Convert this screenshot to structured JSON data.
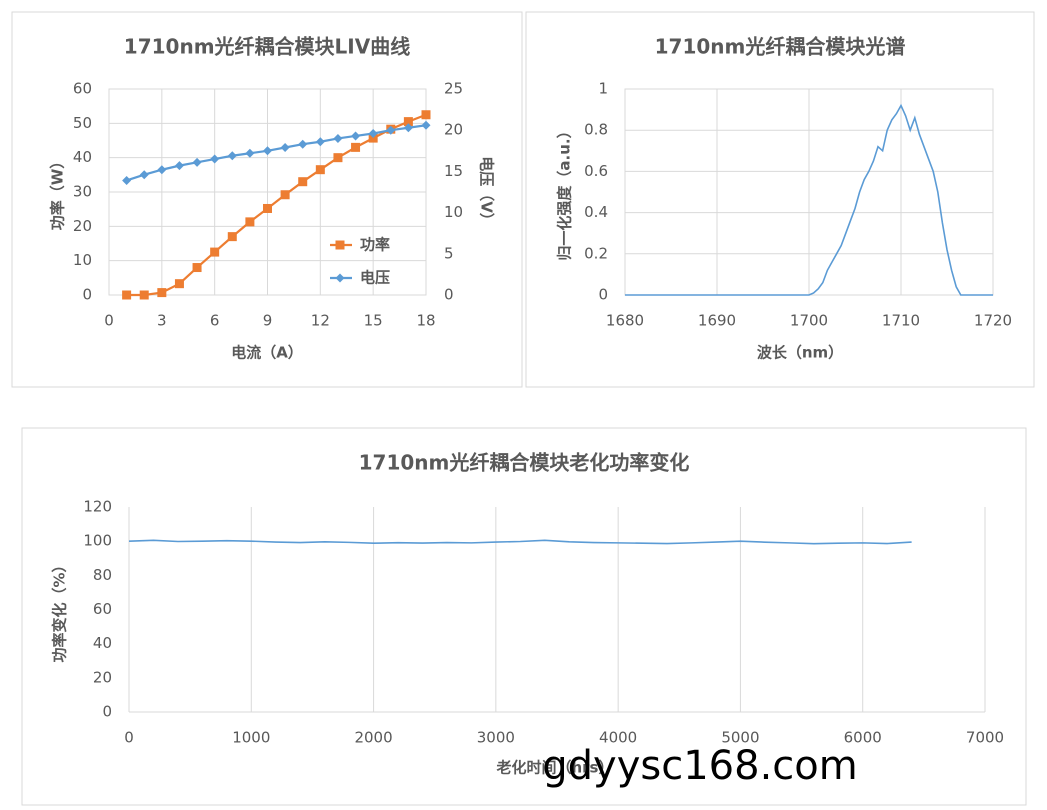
{
  "chart_data": [
    {
      "type": "line",
      "title": "1710nm光纤耦合模块LIV曲线",
      "x_label": "电流（A）",
      "y_label": "功率（W）",
      "y2_label": "电压（V）",
      "x": [
        1,
        2,
        3,
        4,
        5,
        6,
        7,
        8,
        9,
        10,
        11,
        12,
        13,
        14,
        15,
        16,
        17,
        18
      ],
      "series": [
        {
          "name": "功率",
          "color": "#ed7d31",
          "marker": "square",
          "values": [
            0,
            0,
            0.7,
            3.3,
            8,
            12.5,
            17,
            21.3,
            25.2,
            29.2,
            33,
            36.5,
            40,
            43,
            45.7,
            48.3,
            50.5,
            52.5
          ]
        },
        {
          "name": "电压",
          "color": "#5b9bd5",
          "marker": "diamond",
          "axis": "y2",
          "values": [
            13.9,
            14.6,
            15.2,
            15.7,
            16.1,
            16.5,
            16.9,
            17.2,
            17.5,
            17.9,
            18.3,
            18.6,
            19.0,
            19.3,
            19.6,
            20.0,
            20.3,
            20.6
          ]
        }
      ],
      "xlim": [
        0,
        18
      ],
      "xticks": [
        0,
        3,
        6,
        9,
        12,
        15,
        18
      ],
      "ylim": [
        0,
        60
      ],
      "yticks": [
        0,
        10,
        20,
        30,
        40,
        50,
        60
      ],
      "y2lim": [
        0,
        25
      ],
      "y2ticks": [
        0,
        5,
        10,
        15,
        20,
        25
      ],
      "grid": "both",
      "legend": "right"
    },
    {
      "type": "line",
      "title": "1710nm光纤耦合模块光谱",
      "x_label": "波长（nm）",
      "y_label": "归一化强度（a.u.）",
      "x": [
        1680,
        1680.5,
        1681,
        1681.5,
        1682,
        1682.5,
        1683,
        1683.5,
        1684,
        1684.5,
        1685,
        1685.5,
        1686,
        1686.5,
        1687,
        1687.5,
        1688,
        1688.5,
        1689,
        1689.5,
        1690,
        1690.5,
        1691,
        1691.5,
        1692,
        1692.5,
        1693,
        1693.5,
        1694,
        1694.5,
        1695,
        1695.5,
        1696,
        1696.5,
        1697,
        1697.5,
        1698,
        1698.5,
        1699,
        1699.5,
        1700,
        1700.5,
        1701,
        1701.5,
        1702,
        1702.5,
        1703,
        1703.5,
        1704,
        1704.5,
        1705,
        1705.5,
        1706,
        1706.5,
        1707,
        1707.5,
        1708,
        1708.5,
        1709,
        1709.5,
        1710,
        1710.5,
        1711,
        1711.5,
        1712,
        1712.5,
        1713,
        1713.5,
        1714,
        1714.5,
        1715,
        1715.5,
        1716,
        1716.5,
        1717,
        1717.5,
        1718,
        1718.5,
        1719,
        1719.5,
        1720
      ],
      "series": [
        {
          "color": "#5b9bd5",
          "values": [
            0,
            0,
            0,
            0,
            0,
            0,
            0,
            0,
            0,
            0,
            0,
            0,
            0,
            0,
            0,
            0,
            0,
            0,
            0,
            0,
            0,
            0,
            0,
            0,
            0,
            0,
            0,
            0,
            0,
            0,
            0,
            0,
            0,
            0,
            0,
            0,
            0,
            0,
            0,
            0,
            0,
            0.01,
            0.03,
            0.06,
            0.12,
            0.16,
            0.2,
            0.24,
            0.3,
            0.36,
            0.42,
            0.5,
            0.56,
            0.6,
            0.65,
            0.72,
            0.7,
            0.8,
            0.85,
            0.88,
            0.92,
            0.87,
            0.8,
            0.86,
            0.78,
            0.72,
            0.66,
            0.6,
            0.5,
            0.35,
            0.22,
            0.12,
            0.04,
            0,
            0,
            0,
            0,
            0,
            0,
            0,
            0
          ]
        }
      ],
      "xlim": [
        1680,
        1720
      ],
      "xticks": [
        1680,
        1690,
        1700,
        1710,
        1720
      ],
      "ylim": [
        0,
        1
      ],
      "yticks": [
        0,
        0.2,
        0.4,
        0.6,
        0.8,
        1
      ],
      "grid": "both"
    },
    {
      "type": "line",
      "title": "1710nm光纤耦合模块老化功率变化",
      "x_label": "老化时间（hrs）",
      "y_label": "功率变化（%）",
      "x": [
        0,
        200,
        400,
        600,
        800,
        1000,
        1200,
        1400,
        1600,
        1800,
        2000,
        2200,
        2400,
        2600,
        2800,
        3000,
        3200,
        3400,
        3600,
        3800,
        4000,
        4200,
        4400,
        4600,
        4800,
        5000,
        5200,
        5400,
        5600,
        5800,
        6000,
        6200,
        6400
      ],
      "series": [
        {
          "color": "#5b9bd5",
          "values": [
            100,
            100.5,
            99.8,
            100,
            100.3,
            100,
            99.5,
            99.2,
            99.6,
            99.3,
            98.8,
            99.1,
            98.9,
            99.2,
            99,
            99.5,
            99.8,
            100.5,
            99.6,
            99.2,
            99,
            98.8,
            98.6,
            99,
            99.5,
            100,
            99.4,
            99,
            98.5,
            98.8,
            99,
            98.6,
            99.5
          ]
        }
      ],
      "xlim": [
        0,
        7000
      ],
      "xticks": [
        0,
        1000,
        2000,
        3000,
        4000,
        5000,
        6000,
        7000
      ],
      "ylim": [
        0,
        120
      ],
      "yticks": [
        0,
        20,
        40,
        60,
        80,
        100,
        120
      ],
      "grid": "x"
    }
  ],
  "watermark": "gdyysc168.com"
}
